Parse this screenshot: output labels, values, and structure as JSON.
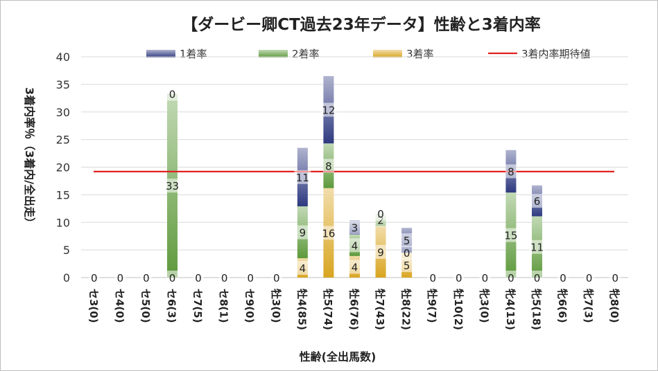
{
  "chart_data": {
    "type": "bar",
    "stacked": true,
    "title": "【ダービー卿CT過去23年データ】性齢と3着内率",
    "xlabel": "性齢(全出馬数)",
    "ylabel": "3着内率％（3着内/全出走）",
    "ylim": [
      0,
      40
    ],
    "yticks": [
      0,
      5,
      10,
      15,
      20,
      25,
      30,
      35,
      40
    ],
    "grid": true,
    "legend_position": "top",
    "categories": [
      "セ3(0)",
      "セ4(0)",
      "セ5(0)",
      "セ6(3)",
      "セ7(5)",
      "セ8(1)",
      "セ9(0)",
      "牡3(0)",
      "牡4(85)",
      "牡5(74)",
      "牡6(76)",
      "牡7(43)",
      "牡8(22)",
      "牡9(7)",
      "牡10(2)",
      "牝3(0)",
      "牝4(13)",
      "牝5(18)",
      "牝6(6)",
      "牝7(3)",
      "牝8(0)"
    ],
    "series": [
      {
        "name": "3着率",
        "color": "#d9a520",
        "values": [
          0,
          0,
          0,
          0,
          0,
          0,
          0,
          0,
          3.5,
          16.2,
          3.9,
          9.3,
          4.5,
          0,
          0,
          0,
          0,
          0,
          0,
          0,
          0
        ]
      },
      {
        "name": "2着率",
        "color": "#5e9a3c",
        "values": [
          0,
          0,
          0,
          33.3,
          0,
          0,
          0,
          0,
          9.4,
          8.1,
          3.9,
          2.3,
          0,
          0,
          0,
          0,
          15.4,
          11.1,
          0,
          0,
          0
        ]
      },
      {
        "name": "1着率",
        "color": "#2e3a80",
        "values": [
          0,
          0,
          0,
          0,
          0,
          0,
          0,
          0,
          10.6,
          12.2,
          2.6,
          0,
          4.5,
          0,
          0,
          0,
          7.7,
          5.6,
          0,
          0,
          0
        ]
      }
    ],
    "labels": {
      "3着率": [
        "0",
        "0",
        "0",
        "0",
        "0",
        "0",
        "0",
        "0",
        "4",
        "16",
        "4",
        "9",
        "5",
        "0",
        "0",
        "0",
        "0",
        "0",
        "0",
        "0",
        "0"
      ],
      "2着率": [
        "",
        "",
        "",
        "33",
        "",
        "",
        "",
        "",
        "9",
        "8",
        "4",
        "2",
        "0",
        "",
        "",
        "",
        "15",
        "11",
        "",
        "",
        ""
      ],
      "1着率": [
        "",
        "",
        "",
        "0",
        "",
        "",
        "",
        "",
        "11",
        "12",
        "3",
        "0",
        "5",
        "",
        "",
        "",
        "8",
        "6",
        "",
        "",
        ""
      ]
    },
    "reference_line": {
      "name": "3着内率期待値",
      "value": 19.2,
      "color": "#e02020"
    }
  }
}
